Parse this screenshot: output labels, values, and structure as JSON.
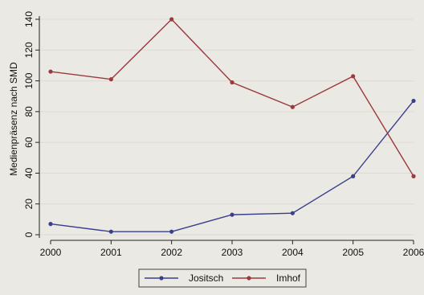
{
  "chart_data": {
    "type": "line",
    "x": [
      2000,
      2001,
      2002,
      2003,
      2004,
      2005,
      2006
    ],
    "x_ticks": [
      "2000",
      "2001",
      "2002",
      "2003",
      "2004",
      "2005",
      "2006"
    ],
    "y_ticks": [
      "0",
      "20",
      "40",
      "60",
      "80",
      "100",
      "120",
      "140"
    ],
    "ylabel": "Medienpräsenz nach SMD",
    "xlabel": "",
    "ylim": [
      0,
      140
    ],
    "xlim": [
      2000,
      2006
    ],
    "grid": true,
    "legend_position": "bottom",
    "series": [
      {
        "name": "Jositsch",
        "color": "#3a3f8c",
        "values": [
          7,
          2,
          2,
          13,
          14,
          38,
          87
        ]
      },
      {
        "name": "Imhof",
        "color": "#9a3a3f",
        "values": [
          106,
          101,
          140,
          99,
          83,
          103,
          38
        ]
      }
    ]
  }
}
